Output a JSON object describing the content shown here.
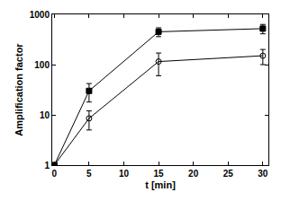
{
  "chart_data": {
    "type": "line",
    "x_label": "t [min]",
    "y_label": "Amplification factor",
    "log": "y",
    "grid": false,
    "xlim": [
      -0.3,
      30.8
    ],
    "xticks": [
      0,
      5,
      10,
      15,
      20,
      25,
      30
    ],
    "ylim": [
      1,
      1000
    ],
    "yticks": [
      1,
      10,
      100,
      1000
    ],
    "x": [
      0,
      5,
      15,
      30
    ],
    "series": [
      {
        "color": "#000000",
        "marker": "square",
        "values": [
          1,
          30,
          450,
          520
        ],
        "errors": [
          0,
          12,
          90,
          110
        ]
      },
      {
        "color": "#000000",
        "marker": "circle-open",
        "values": [
          1,
          8.5,
          115,
          150
        ],
        "errors": [
          0,
          3.5,
          55,
          50
        ]
      }
    ]
  }
}
